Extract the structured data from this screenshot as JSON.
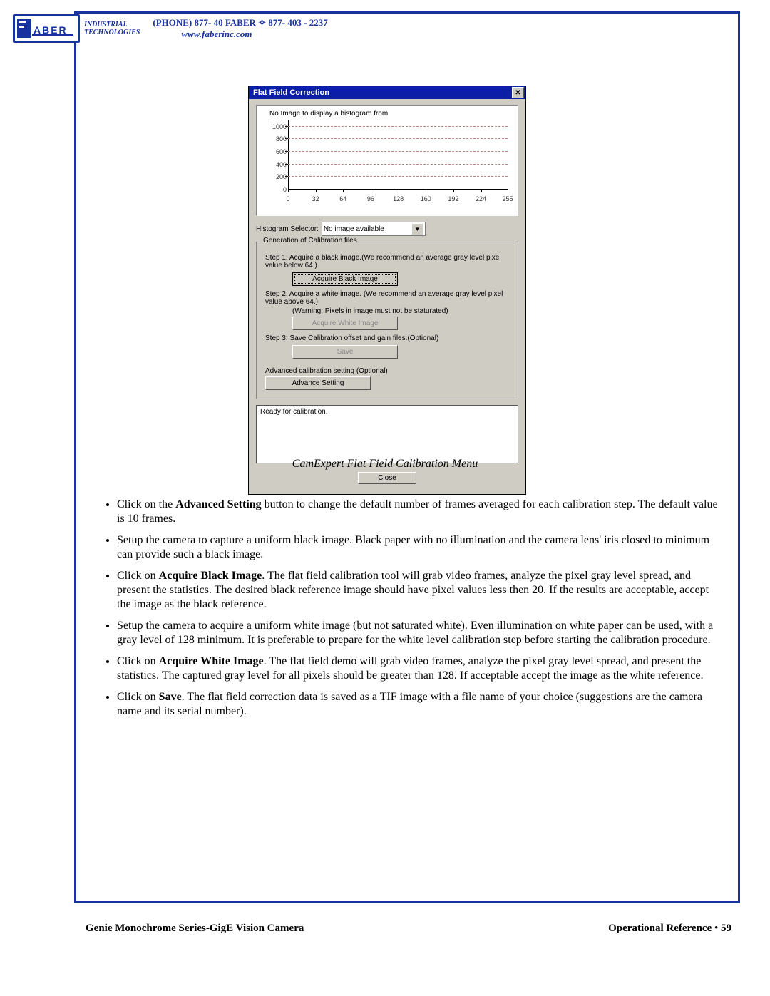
{
  "header": {
    "brand_top": "INDUSTRIAL",
    "brand_bottom": "TECHNOLOGIES",
    "logo_text": "ABER",
    "phone": "(PHONE) 877- 40 FABER  ✧  877- 403 - 2237",
    "url": "www.faberinc.com"
  },
  "dialog": {
    "title": "Flat Field Correction",
    "histogram": {
      "type": "line",
      "message": "No Image to display a histogram from",
      "y_ticks": [
        0,
        200,
        400,
        600,
        800,
        1000
      ],
      "ylim": [
        0,
        1100
      ],
      "x_ticks": [
        0,
        32,
        64,
        96,
        128,
        160,
        192,
        224,
        255
      ],
      "xlim": [
        0,
        255
      ],
      "grid_color": "#bb8888",
      "axis_color": "#000000",
      "background_color": "#ffffff",
      "tick_fontsize": 9
    },
    "selector_label": "Histogram Selector:",
    "selector_value": "No image available",
    "groupbox_title": "Generation of Calibration files",
    "step1": "Step 1:  Acquire a black image.(We recommend an average gray level pixel value below 64.)",
    "btn_black": "Acquire Black Image",
    "step2": "Step 2:  Acquire a white image. (We recommend an average gray level pixel value above 64.)",
    "step2_note": "(Warning; Pixels in image must not be staturated)",
    "btn_white": "Acquire White Image",
    "step3": "Step 3:  Save Calibration offset and gain files.(Optional)",
    "btn_save": "Save",
    "adv_label": "Advanced calibration setting (Optional)",
    "btn_adv": "Advance Setting",
    "status": "Ready for calibration.",
    "btn_close": "Close"
  },
  "caption": "CamExpert Flat Field Calibration Menu",
  "bullets": {
    "b1a": "Click on the ",
    "b1b": "Advanced Setting",
    "b1c": " button to change the default number of frames averaged for each calibration step. The default value is 10 frames.",
    "b2": "Setup the camera to capture a uniform black image. Black paper with no illumination and the camera lens' iris closed to minimum can provide such a black image.",
    "b3a": "Click on ",
    "b3b": "Acquire Black Image",
    "b3c": ". The flat field calibration tool will grab video frames, analyze the pixel gray level spread, and present the statistics. The desired black reference image should have pixel values less then 20. If the results are acceptable, accept the image as the black reference.",
    "b4": "Setup the camera to acquire a uniform white image (but not saturated white). Even illumination on white paper can be used, with a gray level of 128 minimum. It is preferable to prepare for the white level calibration step before starting the calibration procedure.",
    "b5a": "Click on ",
    "b5b": "Acquire White Image",
    "b5c": ". The flat field demo will grab video frames, analyze the pixel gray level spread, and present the statistics. The captured gray level for all pixels should be greater than 128. If acceptable accept the image as the white reference.",
    "b6a": "Click on ",
    "b6b": "Save",
    "b6c": ". The flat field correction data is saved as a TIF image with a file name of your choice (suggestions are the camera name and its serial number)."
  },
  "footer": {
    "left": "Genie Monochrome Series-GigE Vision Camera",
    "right_label": "Operational Reference",
    "bullet": "•",
    "page": "59"
  },
  "colors": {
    "brand_blue": "#1832a0",
    "title_blue": "#0a1ea8",
    "dialog_bg": "#cfccc4"
  }
}
